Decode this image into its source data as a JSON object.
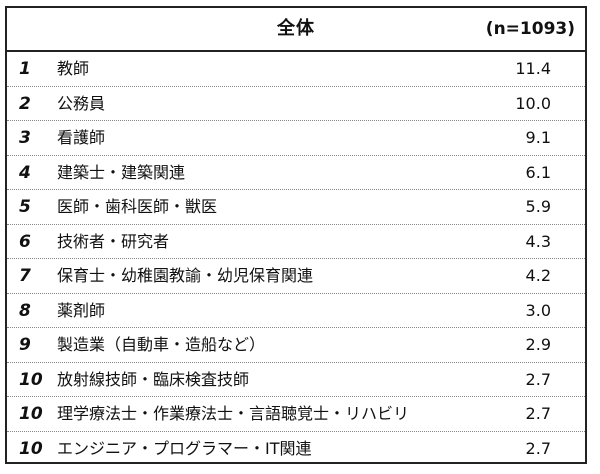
{
  "header": {
    "title": "全体",
    "n": "(n=1093)"
  },
  "rows": [
    {
      "rank": "1",
      "label": "教師",
      "value": "11.4"
    },
    {
      "rank": "2",
      "label": "公務員",
      "value": "10.0"
    },
    {
      "rank": "3",
      "label": "看護師",
      "value": "9.1"
    },
    {
      "rank": "4",
      "label": "建築士・建築関連",
      "value": "6.1"
    },
    {
      "rank": "5",
      "label": "医師・歯科医師・獣医",
      "value": "5.9"
    },
    {
      "rank": "6",
      "label": "技術者・研究者",
      "value": "4.3"
    },
    {
      "rank": "7",
      "label": "保育士・幼稚園教諭・幼児保育関連",
      "value": "4.2"
    },
    {
      "rank": "8",
      "label": "薬剤師",
      "value": "3.0"
    },
    {
      "rank": "9",
      "label": "製造業（自動車・造船など）",
      "value": "2.9"
    },
    {
      "rank": "10",
      "label": "放射線技師・臨床検査技師",
      "value": "2.7"
    },
    {
      "rank": "10",
      "label": "理学療法士・作業療法士・言語聴覚士・リハビリ",
      "value": "2.7"
    },
    {
      "rank": "10",
      "label": "エンジニア・プログラマー・IT関連",
      "value": "2.7"
    }
  ]
}
